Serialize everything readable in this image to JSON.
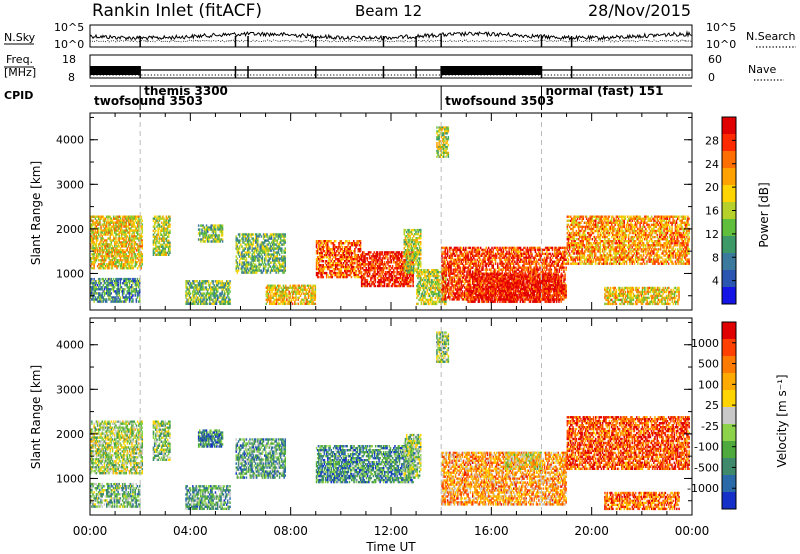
{
  "header": {
    "station": "Rankin Inlet (fitACF)",
    "beam": "Beam 12",
    "date": "28/Nov/2015"
  },
  "strip_panels": {
    "noise": {
      "left_label": "N.Sky",
      "left_ticks": [
        "10^5",
        "10^0"
      ],
      "right_ticks": [
        "10^5",
        "10^0"
      ],
      "right_label": "N.Search",
      "right_label_style": "dotted"
    },
    "freq": {
      "left_label_line1": "Freq.",
      "left_label_line2": "[MHz]",
      "left_ticks": [
        "18",
        "8"
      ],
      "right_ticks": [
        "60",
        "0"
      ],
      "right_label": "Nave",
      "right_label_style": "dotted"
    },
    "cpid": {
      "label": "CPID",
      "modes": [
        {
          "name": "twofsound 3503",
          "start_h": 0,
          "row": 2
        },
        {
          "name": "themis 3300",
          "start_h": 2.0,
          "row": 1
        },
        {
          "name": "twofsound 3503",
          "start_h": 14.0,
          "row": 2
        },
        {
          "name": "normal (fast) 151",
          "start_h": 18.0,
          "row": 1
        }
      ]
    }
  },
  "chart_data": [
    {
      "type": "heatmap",
      "name": "Power",
      "xlabel": "",
      "ylabel": "Slant Range [km]",
      "x_range_hours": [
        0,
        24
      ],
      "ylim": [
        180,
        4600
      ],
      "yticks": [
        1000,
        2000,
        3000,
        4000
      ],
      "colorbar": {
        "label": "Power [dB]",
        "ticks": [
          "4",
          "8",
          "12",
          "16",
          "20",
          "24",
          "28"
        ],
        "colors": [
          "#1414e6",
          "#2a55b0",
          "#3b7a9c",
          "#3d9a68",
          "#5fbf3c",
          "#b6d22a",
          "#ffd400",
          "#ffa200",
          "#ff6e00",
          "#ff2a00",
          "#e00000"
        ]
      },
      "mode_change_lines_h": [
        2.0,
        14.0,
        18.0
      ],
      "echo_regions": [
        {
          "t0": 0.0,
          "t1": 2.1,
          "r0": 1100,
          "r1": 2300,
          "level": 0.6
        },
        {
          "t0": 0.0,
          "t1": 2.0,
          "r0": 350,
          "r1": 900,
          "level": 0.3
        },
        {
          "t0": 2.5,
          "t1": 3.2,
          "r0": 1400,
          "r1": 2300,
          "level": 0.5
        },
        {
          "t0": 3.8,
          "t1": 5.6,
          "r0": 300,
          "r1": 850,
          "level": 0.4
        },
        {
          "t0": 4.3,
          "t1": 5.3,
          "r0": 1700,
          "r1": 2100,
          "level": 0.4
        },
        {
          "t0": 5.8,
          "t1": 7.8,
          "r0": 1000,
          "r1": 1900,
          "level": 0.4
        },
        {
          "t0": 7.0,
          "t1": 9.0,
          "r0": 300,
          "r1": 750,
          "level": 0.6
        },
        {
          "t0": 9.0,
          "t1": 10.8,
          "r0": 900,
          "r1": 1750,
          "level": 0.8
        },
        {
          "t0": 10.8,
          "t1": 12.9,
          "r0": 700,
          "r1": 1500,
          "level": 0.92
        },
        {
          "t0": 12.5,
          "t1": 13.2,
          "r0": 1000,
          "r1": 2000,
          "level": 0.5
        },
        {
          "t0": 13.0,
          "t1": 14.2,
          "r0": 300,
          "r1": 1100,
          "level": 0.5
        },
        {
          "t0": 14.0,
          "t1": 19.0,
          "r0": 400,
          "r1": 1600,
          "level": 0.85
        },
        {
          "t0": 15.0,
          "t1": 18.8,
          "r0": 350,
          "r1": 1000,
          "level": 0.95
        },
        {
          "t0": 19.0,
          "t1": 23.9,
          "r0": 1200,
          "r1": 2300,
          "level": 0.7
        },
        {
          "t0": 20.5,
          "t1": 23.5,
          "r0": 300,
          "r1": 700,
          "level": 0.6
        },
        {
          "t0": 13.8,
          "t1": 14.3,
          "r0": 3600,
          "r1": 4300,
          "level": 0.5
        }
      ]
    },
    {
      "type": "heatmap",
      "name": "Velocity",
      "xlabel": "Time UT",
      "ylabel": "Slant Range [km]",
      "x_range_hours": [
        0,
        24
      ],
      "xticks": [
        "00:00",
        "04:00",
        "08:00",
        "12:00",
        "16:00",
        "20:00",
        "00:00"
      ],
      "ylim": [
        180,
        4600
      ],
      "yticks": [
        1000,
        2000,
        3000,
        4000
      ],
      "colorbar": {
        "label": "Velocity [m s⁻¹]",
        "ticks": [
          "1000",
          "500",
          "100",
          "25",
          "-25",
          "-100",
          "-500",
          "-1000"
        ],
        "colors": [
          "#1430c8",
          "#2a6aa8",
          "#3f8a6c",
          "#4eaa3c",
          "#8cd24a",
          "#c8c8c8",
          "#ffd400",
          "#ffaa00",
          "#ff7a00",
          "#ff4000",
          "#e00000"
        ]
      },
      "mode_change_lines_h": [
        2.0,
        14.0,
        18.0
      ],
      "echo_regions": [
        {
          "t0": 0.0,
          "t1": 2.1,
          "r0": 1100,
          "r1": 2300,
          "level": 0.45
        },
        {
          "t0": 0.0,
          "t1": 2.0,
          "r0": 350,
          "r1": 900,
          "level": 0.35
        },
        {
          "t0": 2.5,
          "t1": 3.2,
          "r0": 1400,
          "r1": 2300,
          "level": 0.4
        },
        {
          "t0": 3.8,
          "t1": 5.6,
          "r0": 300,
          "r1": 850,
          "level": 0.3
        },
        {
          "t0": 4.3,
          "t1": 5.3,
          "r0": 1700,
          "r1": 2100,
          "level": 0.2
        },
        {
          "t0": 5.8,
          "t1": 7.8,
          "r0": 1000,
          "r1": 1900,
          "level": 0.3
        },
        {
          "t0": 9.0,
          "t1": 12.9,
          "r0": 900,
          "r1": 1750,
          "level": 0.25
        },
        {
          "t0": 12.5,
          "t1": 13.2,
          "r0": 1000,
          "r1": 2000,
          "level": 0.4
        },
        {
          "t0": 14.0,
          "t1": 19.0,
          "r0": 400,
          "r1": 1600,
          "level": 0.7
        },
        {
          "t0": 16.5,
          "t1": 18.0,
          "r0": 1200,
          "r1": 1600,
          "level": 0.55
        },
        {
          "t0": 19.0,
          "t1": 23.9,
          "r0": 1200,
          "r1": 2400,
          "level": 0.85
        },
        {
          "t0": 20.5,
          "t1": 23.5,
          "r0": 300,
          "r1": 700,
          "level": 0.8
        },
        {
          "t0": 13.8,
          "t1": 14.3,
          "r0": 3600,
          "r1": 4300,
          "level": 0.4
        }
      ]
    }
  ]
}
